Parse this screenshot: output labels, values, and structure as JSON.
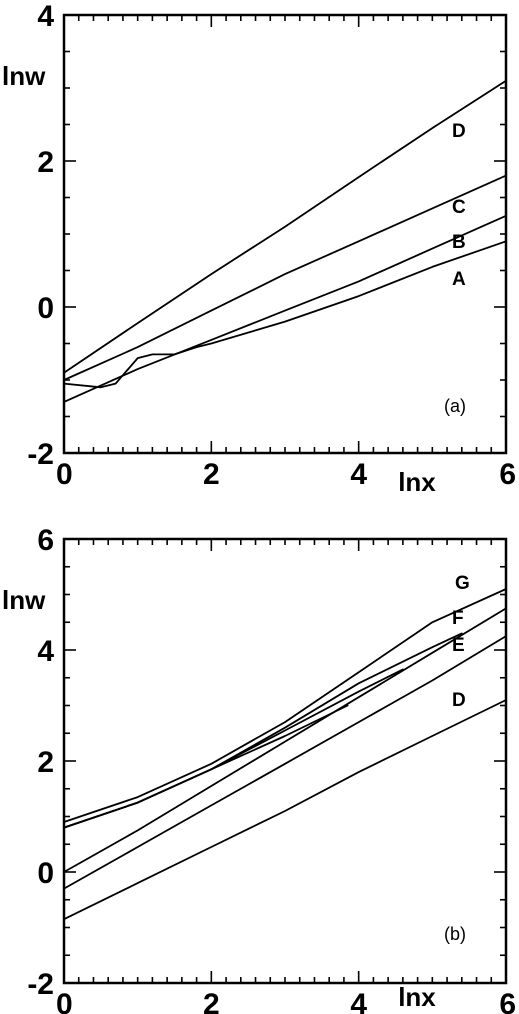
{
  "chart_data": [
    {
      "type": "line",
      "panel_label": "(a)",
      "xlabel": "lnx",
      "ylabel": "lnw",
      "xlim": [
        0,
        6
      ],
      "ylim": [
        -2,
        4
      ],
      "x_ticks": [
        "0",
        "2",
        "4",
        "6"
      ],
      "y_ticks": [
        "-2",
        "0",
        "2",
        "4"
      ],
      "grid": false,
      "series": [
        {
          "name": "D",
          "x": [
            0,
            1,
            2,
            3,
            4,
            5,
            6
          ],
          "y": [
            -0.9,
            -0.22,
            0.45,
            1.1,
            1.78,
            2.45,
            3.1
          ]
        },
        {
          "name": "C",
          "x": [
            0,
            1,
            2,
            3,
            4,
            5,
            6
          ],
          "y": [
            -1.0,
            -0.55,
            -0.05,
            0.45,
            0.9,
            1.35,
            1.8
          ]
        },
        {
          "name": "B",
          "x": [
            0,
            1,
            2,
            3,
            4,
            5,
            6
          ],
          "y": [
            -1.3,
            -0.85,
            -0.45,
            -0.05,
            0.35,
            0.8,
            1.25
          ]
        },
        {
          "name": "A",
          "x": [
            0,
            0.5,
            0.7,
            1.0,
            1.2,
            1.5,
            1.8,
            2,
            3,
            4,
            5,
            6
          ],
          "y": [
            -1.05,
            -1.1,
            -1.05,
            -0.7,
            -0.65,
            -0.65,
            -0.55,
            -0.5,
            -0.2,
            0.15,
            0.55,
            0.9
          ]
        }
      ]
    },
    {
      "type": "line",
      "panel_label": "(b)",
      "xlabel": "lnx",
      "ylabel": "lnw",
      "xlim": [
        0,
        6
      ],
      "ylim": [
        -2,
        6
      ],
      "x_ticks": [
        "0",
        "2",
        "4",
        "6"
      ],
      "y_ticks": [
        "-2",
        "0",
        "2",
        "4",
        "6"
      ],
      "grid": false,
      "series": [
        {
          "name": "G",
          "x": [
            0,
            1,
            2,
            3,
            4,
            5,
            6
          ],
          "y": [
            0.9,
            1.35,
            1.95,
            2.7,
            3.6,
            4.5,
            5.1
          ]
        },
        {
          "name": "",
          "x": [
            0,
            1,
            2,
            3,
            3.85
          ],
          "y": [
            0.8,
            1.25,
            1.85,
            2.45,
            3.0
          ]
        },
        {
          "name": "",
          "x": [
            0,
            1,
            2,
            3,
            4,
            4.6
          ],
          "y": [
            0.8,
            1.25,
            1.85,
            2.55,
            3.25,
            3.65
          ]
        },
        {
          "name": "",
          "x": [
            0,
            1,
            2,
            3,
            4,
            5,
            5.4
          ],
          "y": [
            0.8,
            1.25,
            1.85,
            2.6,
            3.4,
            4.05,
            4.3
          ]
        },
        {
          "name": "F",
          "x": [
            0,
            1,
            2,
            3,
            4,
            5,
            6
          ],
          "y": [
            0.0,
            0.75,
            1.55,
            2.35,
            3.15,
            3.95,
            4.75
          ]
        },
        {
          "name": "E",
          "x": [
            0,
            1,
            2,
            3,
            4,
            5,
            6
          ],
          "y": [
            -0.3,
            0.45,
            1.2,
            1.95,
            2.7,
            3.45,
            4.25
          ]
        },
        {
          "name": "D",
          "x": [
            0,
            1,
            2,
            3,
            4,
            5,
            6
          ],
          "y": [
            -0.85,
            -0.2,
            0.45,
            1.1,
            1.8,
            2.45,
            3.1
          ]
        }
      ]
    }
  ]
}
